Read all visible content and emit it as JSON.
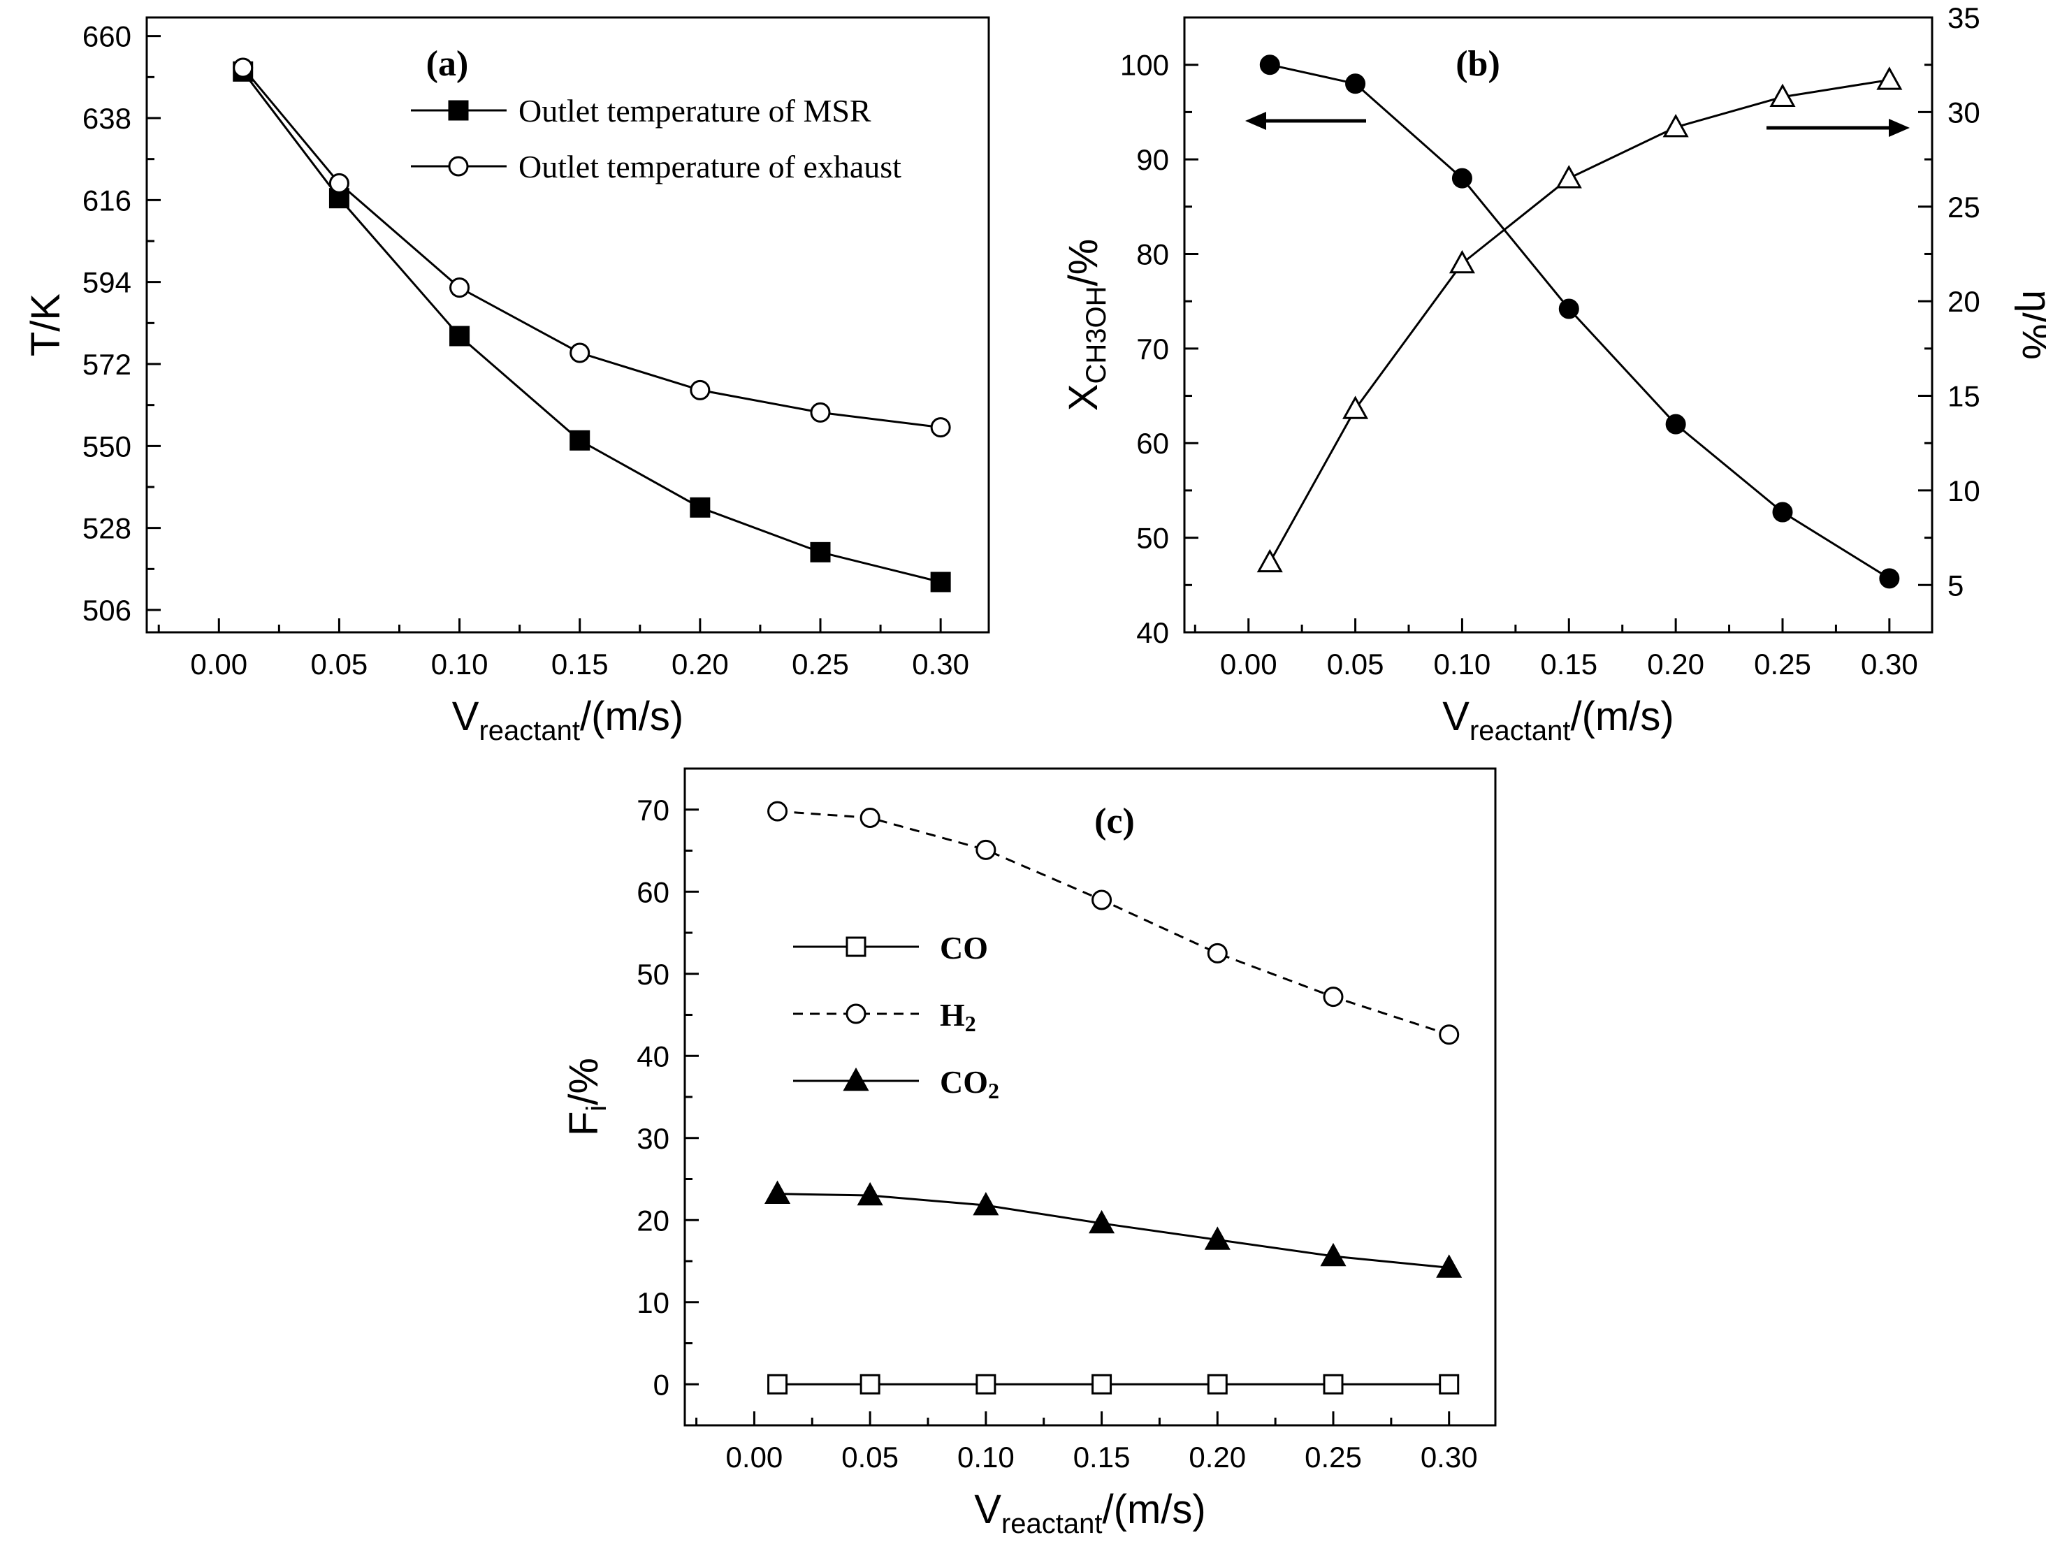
{
  "chart_data": [
    {
      "id": "a",
      "type": "line",
      "panel_label": "(a)",
      "xlabel": {
        "main": "V",
        "sub": "reactant",
        "tail": "/(m/s)"
      },
      "ylabel": "T/K",
      "x_ticks": [
        "0.00",
        "0.05",
        "0.10",
        "0.15",
        "0.20",
        "0.25",
        "0.30"
      ],
      "y_ticks": [
        "506",
        "528",
        "550",
        "572",
        "594",
        "616",
        "638",
        "660"
      ],
      "xlim": [
        -0.03,
        0.32
      ],
      "ylim": [
        500,
        665
      ],
      "legend_position": "top-right",
      "series": [
        {
          "name": "Outlet temperature of MSR",
          "marker": "square-filled",
          "line": "solid",
          "x": [
            0.01,
            0.05,
            0.1,
            0.15,
            0.2,
            0.25,
            0.3
          ],
          "y": [
            650.5,
            616.5,
            579.5,
            551.5,
            533.5,
            521.5,
            513.5
          ]
        },
        {
          "name": "Outlet temperature of exhaust",
          "marker": "circle-open",
          "line": "solid",
          "x": [
            0.01,
            0.05,
            0.1,
            0.15,
            0.2,
            0.25,
            0.3
          ],
          "y": [
            651.5,
            620.5,
            592.5,
            575.0,
            565.0,
            559.0,
            555.0
          ]
        }
      ]
    },
    {
      "id": "b",
      "type": "line",
      "panel_label": "(b)",
      "xlabel": {
        "main": "V",
        "sub": "reactant",
        "tail": "/(m/s)"
      },
      "ylabel": {
        "main": "X",
        "sub": "CH3OH",
        "tail": "/%"
      },
      "ylabel_right": "η/%",
      "x_ticks": [
        "0.00",
        "0.05",
        "0.10",
        "0.15",
        "0.20",
        "0.25",
        "0.30"
      ],
      "y_ticks": [
        "40",
        "50",
        "60",
        "70",
        "80",
        "90",
        "100"
      ],
      "y2_ticks": [
        "5",
        "10",
        "15",
        "20",
        "25",
        "30",
        "35"
      ],
      "xlim": [
        -0.03,
        0.32
      ],
      "ylim": [
        40,
        105
      ],
      "y2lim": [
        2.5,
        35
      ],
      "series": [
        {
          "name": "X_CH3OH",
          "axis": "left",
          "marker": "circle-filled",
          "line": "solid",
          "x": [
            0.01,
            0.05,
            0.1,
            0.15,
            0.2,
            0.25,
            0.3
          ],
          "y": [
            100,
            98,
            88,
            74.2,
            62,
            52.7,
            45.7
          ]
        },
        {
          "name": "η",
          "axis": "right",
          "marker": "triangle-open",
          "line": "solid",
          "x": [
            0.01,
            0.05,
            0.1,
            0.15,
            0.2,
            0.25,
            0.3
          ],
          "y": [
            6.2,
            14.3,
            22.0,
            26.5,
            29.2,
            30.8,
            31.7
          ]
        }
      ]
    },
    {
      "id": "c",
      "type": "line",
      "panel_label": "(c)",
      "xlabel": {
        "main": "V",
        "sub": "reactant",
        "tail": "/(m/s)"
      },
      "ylabel": {
        "main": "F",
        "sub": "i",
        "tail": "/%"
      },
      "x_ticks": [
        "0.00",
        "0.05",
        "0.10",
        "0.15",
        "0.20",
        "0.25",
        "0.30"
      ],
      "y_ticks": [
        "0",
        "10",
        "20",
        "30",
        "40",
        "50",
        "60",
        "70"
      ],
      "xlim": [
        -0.03,
        0.32
      ],
      "ylim": [
        -5,
        75
      ],
      "legend_position": "center-left",
      "series": [
        {
          "name": "CO",
          "label": "CO",
          "label_sub": "",
          "marker": "square-open",
          "line": "solid",
          "x": [
            0.01,
            0.05,
            0.1,
            0.15,
            0.2,
            0.25,
            0.3
          ],
          "y": [
            0,
            0,
            0,
            0,
            0,
            0,
            0
          ]
        },
        {
          "name": "H2",
          "label": "H",
          "label_sub": "2",
          "marker": "circle-open",
          "line": "dashed",
          "x": [
            0.01,
            0.05,
            0.1,
            0.15,
            0.2,
            0.25,
            0.3
          ],
          "y": [
            69.8,
            69.0,
            65.1,
            59.0,
            52.5,
            47.2,
            42.6
          ]
        },
        {
          "name": "CO2",
          "label": "CO",
          "label_sub": "2",
          "marker": "triangle-filled",
          "line": "solid",
          "x": [
            0.01,
            0.05,
            0.1,
            0.15,
            0.2,
            0.25,
            0.3
          ],
          "y": [
            23.2,
            23.0,
            21.8,
            19.6,
            17.6,
            15.6,
            14.2
          ]
        }
      ]
    }
  ]
}
